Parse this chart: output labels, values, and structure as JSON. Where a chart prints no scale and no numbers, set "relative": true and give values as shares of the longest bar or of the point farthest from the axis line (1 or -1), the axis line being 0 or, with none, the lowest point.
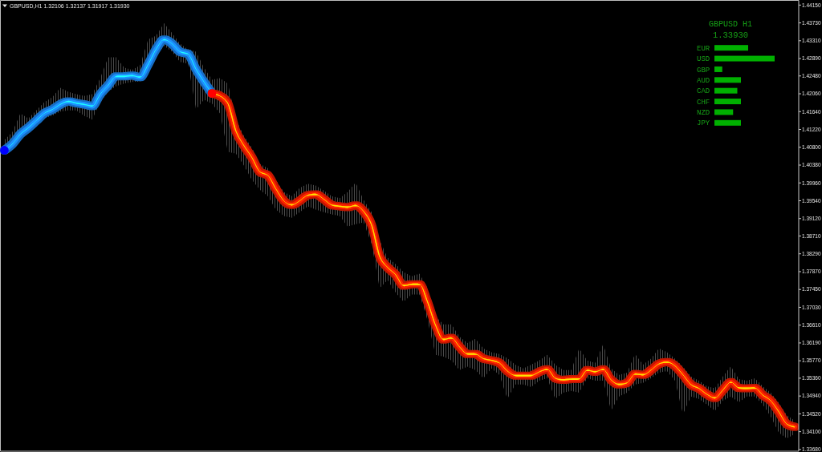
{
  "chart_data": [
    {
      "type": "line",
      "title": "GBPUSD,H1 1.32106 1.32137 1.31917 1.31930",
      "categories": [
        null,
        null,
        null,
        null,
        null,
        null,
        null,
        null,
        null,
        null,
        null,
        null,
        null,
        null,
        null,
        null,
        null,
        null,
        null,
        null,
        null,
        null,
        null,
        null,
        null,
        null,
        null,
        null,
        null,
        null,
        null,
        null,
        null,
        null,
        null,
        null,
        null,
        null,
        null,
        null,
        null,
        null,
        null,
        null,
        null,
        null,
        null,
        null,
        null,
        null,
        null,
        null,
        null,
        null,
        null,
        null,
        null,
        null,
        null,
        null,
        null,
        null,
        null,
        null,
        null,
        null,
        null,
        null,
        null,
        null,
        null,
        null,
        null,
        null,
        null,
        null,
        null,
        null,
        null,
        null,
        null,
        null,
        null,
        null,
        null,
        null,
        null,
        null,
        null,
        null,
        null,
        null,
        null,
        null,
        null,
        null,
        null,
        null,
        null,
        null
      ],
      "series": [
        {
          "color": "#1e90ff",
          "values": [
            1.4073,
            1.4088,
            1.4111,
            1.4126,
            1.4143,
            1.416,
            1.4169,
            1.4181,
            1.4188,
            1.4184,
            1.4181,
            1.4177,
            1.4205,
            1.4226,
            1.4247,
            1.4247,
            1.4249,
            1.4245,
            1.4275,
            1.4311,
            1.4334,
            1.4324,
            1.4305,
            1.43,
            1.4264,
            1.4234,
            1.4207,
            null,
            null,
            null,
            null,
            null,
            null,
            null,
            null,
            null,
            null,
            null,
            null,
            null,
            null,
            null,
            null,
            null,
            null,
            null,
            null,
            null,
            null,
            null,
            null,
            null,
            null,
            null,
            null,
            null,
            null,
            null,
            null,
            null,
            null,
            null,
            null,
            null,
            null,
            null,
            null,
            null,
            null,
            null,
            null,
            null,
            null,
            null,
            null,
            null,
            null,
            null,
            null,
            null,
            null,
            null,
            null,
            null,
            null,
            null,
            null,
            null,
            null,
            null,
            null,
            null,
            null,
            null,
            null,
            null,
            null,
            null,
            null,
            null
          ]
        },
        {
          "color": "#ff2000",
          "values": [
            null,
            null,
            null,
            null,
            null,
            null,
            null,
            null,
            null,
            null,
            null,
            null,
            null,
            null,
            null,
            null,
            null,
            null,
            null,
            null,
            null,
            null,
            null,
            null,
            null,
            null,
            1.4207,
            1.4201,
            1.4183,
            1.4118,
            1.4084,
            1.4056,
            1.4022,
            1.4014,
            1.3982,
            1.3954,
            1.3944,
            1.3954,
            1.3967,
            1.3969,
            1.3958,
            1.3944,
            1.3941,
            1.3939,
            1.3943,
            1.3929,
            1.3897,
            1.3823,
            1.3797,
            1.378,
            1.3754,
            1.3757,
            1.3757,
            1.3716,
            1.3661,
            1.3627,
            1.3631,
            1.361,
            1.3593,
            1.3593,
            1.3582,
            1.3578,
            1.3572,
            1.3553,
            1.3542,
            1.3542,
            1.3542,
            1.3551,
            1.3557,
            1.3536,
            1.3532,
            1.3534,
            1.3534,
            1.3555,
            1.3551,
            1.3557,
            1.3532,
            1.3521,
            1.3525,
            1.3546,
            1.3544,
            1.3555,
            1.357,
            1.3574,
            1.3565,
            1.3544,
            1.3521,
            1.3512,
            1.3498,
            1.3489,
            1.3508,
            1.3527,
            1.3513,
            1.3512,
            1.3513,
            1.3496,
            1.3483,
            1.3457,
            1.3428,
            1.3421
          ],
          "lower": [
            1.4065,
            1.4079,
            1.4097,
            1.4116,
            1.413,
            1.4148,
            1.4154,
            1.4164,
            1.4167,
            1.4167,
            1.4154,
            1.4145,
            1.4186,
            1.4211,
            1.4224,
            1.423,
            1.4234,
            1.4235,
            1.4258,
            1.4296,
            1.4319,
            1.4305,
            1.4281,
            1.4277,
            1.4169,
            1.4192,
            1.4183,
            1.416,
            1.4069,
            1.4065,
            1.4037,
            1.4003,
            1.398,
            1.3965,
            1.3933,
            1.3918,
            1.3914,
            1.3927,
            1.3941,
            1.3933,
            1.3927,
            1.3922,
            1.3918,
            1.3893,
            1.3899,
            1.3903,
            1.3852,
            1.3748,
            1.3767,
            1.3738,
            1.3716,
            1.3733,
            1.3733,
            1.3672,
            1.3591,
            1.3587,
            1.3578,
            1.3555,
            1.3563,
            1.3555,
            1.3536,
            1.3559,
            1.3544,
            1.3487,
            1.3521,
            1.3521,
            1.3515,
            1.353,
            1.3536,
            1.3487,
            1.3502,
            1.3506,
            1.3502,
            1.3536,
            1.353,
            1.353,
            1.346,
            1.3493,
            1.3502,
            1.3521,
            1.3525,
            1.3536,
            1.3549,
            1.3553,
            1.353,
            1.3451,
            1.3493,
            1.3487,
            1.3474,
            1.3459,
            1.3483,
            1.3493,
            1.3479,
            1.3493,
            1.3493,
            1.3474,
            1.3445,
            1.3408,
            1.3394,
            1.3404
          ],
          "upper": [
            1.4097,
            1.4116,
            1.416,
            1.4148,
            1.4167,
            1.4186,
            1.4198,
            1.422,
            1.4211,
            1.4205,
            1.4201,
            1.4205,
            1.4243,
            1.4292,
            1.4292,
            1.4268,
            1.4262,
            1.4273,
            1.4334,
            1.4343,
            1.4372,
            1.4349,
            1.4324,
            1.4311,
            1.4305,
            1.4268,
            1.4239,
            1.4243,
            1.423,
            1.4145,
            1.4107,
            1.4079,
            1.4041,
            1.4031,
            1.4003,
            1.3975,
            1.3965,
            1.3984,
            1.3994,
            1.399,
            1.3978,
            1.3965,
            1.396,
            1.3975,
            1.3997,
            1.3956,
            1.3927,
            1.3861,
            1.382,
            1.3805,
            1.3786,
            1.3776,
            1.3782,
            1.3748,
            1.3682,
            1.3663,
            1.3663,
            1.3634,
            1.3619,
            1.3629,
            1.3606,
            1.3597,
            1.3593,
            1.3583,
            1.3568,
            1.3559,
            1.3568,
            1.3578,
            1.3591,
            1.3568,
            1.3555,
            1.3555,
            1.3606,
            1.3578,
            1.3572,
            1.3616,
            1.3559,
            1.3544,
            1.3549,
            1.3593,
            1.3568,
            1.3582,
            1.3606,
            1.3597,
            1.3582,
            1.3563,
            1.354,
            1.353,
            1.3517,
            1.3512,
            1.354,
            1.3564,
            1.3534,
            1.353,
            1.3536,
            1.3517,
            1.3502,
            1.3478,
            1.3449,
            1.3436
          ]
        },
        {
          "type": "scatter",
          "color": "#0000ff",
          "marker": "circle",
          "values": [
            1.4073,
            null,
            null,
            null,
            null,
            null,
            null,
            null,
            null,
            null,
            null,
            null,
            null,
            null,
            null,
            null,
            null,
            null,
            null,
            null,
            null,
            null,
            null,
            null,
            null,
            null,
            null,
            null,
            null,
            null,
            null,
            null,
            null,
            null,
            null,
            null,
            null,
            null,
            null,
            null,
            null,
            null,
            null,
            null,
            null,
            null,
            null,
            null,
            null,
            null,
            null,
            null,
            null,
            null,
            null,
            null,
            null,
            null,
            null,
            null,
            null,
            null,
            null,
            null,
            null,
            null,
            null,
            null,
            null,
            null,
            null,
            null,
            null,
            null,
            null,
            null,
            null,
            null,
            null,
            null,
            null,
            null,
            null,
            null,
            null,
            null,
            null,
            null,
            null,
            null,
            null,
            null,
            null,
            null,
            null,
            null,
            null,
            null,
            null,
            null
          ]
        },
        {
          "type": "scatter",
          "color": "#ff0000",
          "marker": "circle",
          "values": [
            null,
            null,
            null,
            null,
            null,
            null,
            null,
            null,
            null,
            null,
            null,
            null,
            null,
            null,
            null,
            null,
            null,
            null,
            null,
            null,
            null,
            null,
            null,
            null,
            null,
            null,
            1.4207,
            null,
            null,
            null,
            null,
            null,
            null,
            null,
            null,
            null,
            null,
            null,
            null,
            null,
            null,
            null,
            null,
            null,
            null,
            null,
            null,
            null,
            null,
            null,
            null,
            null,
            null,
            null,
            null,
            null,
            null,
            null,
            null,
            null,
            null,
            null,
            null,
            null,
            null,
            null,
            null,
            null,
            null,
            null,
            null,
            null,
            null,
            null,
            null,
            null,
            null,
            null,
            null,
            null,
            null,
            null,
            null,
            null,
            null,
            null,
            null,
            null,
            null,
            null,
            null,
            null,
            null,
            null,
            null,
            null,
            null,
            null,
            null,
            null
          ]
        }
      ],
      "ylim": [
        1.3364,
        1.4426
      ],
      "yticks": [
        {
          "value": 1.4415,
          "label": "1.44150"
        },
        {
          "value": 1.4373,
          "label": "1.43730"
        },
        {
          "value": 1.4331,
          "label": "1.43310"
        },
        {
          "value": 1.4289,
          "label": "1.42890"
        },
        {
          "value": 1.4248,
          "label": "1.42480"
        },
        {
          "value": 1.4206,
          "label": "1.42060"
        },
        {
          "value": 1.4164,
          "label": "1.41640"
        },
        {
          "value": 1.4122,
          "label": "1.41220"
        },
        {
          "value": 1.408,
          "label": "1.40800"
        },
        {
          "value": 1.4038,
          "label": "1.40380"
        },
        {
          "value": 1.3996,
          "label": "1.39960"
        },
        {
          "value": 1.3954,
          "label": "1.39540"
        },
        {
          "value": 1.3912,
          "label": "1.39120"
        },
        {
          "value": 1.3871,
          "label": "1.38710"
        },
        {
          "value": 1.3829,
          "label": "1.38290"
        },
        {
          "value": 1.3787,
          "label": "1.37870"
        },
        {
          "value": 1.3745,
          "label": "1.37450"
        },
        {
          "value": 1.3703,
          "label": "1.37030"
        },
        {
          "value": 1.3661,
          "label": "1.36610"
        },
        {
          "value": 1.3619,
          "label": "1.36190"
        },
        {
          "value": 1.3577,
          "label": "1.35770"
        },
        {
          "value": 1.3536,
          "label": "1.35360"
        },
        {
          "value": 1.3494,
          "label": "1.34940"
        },
        {
          "value": 1.3452,
          "label": "1.34520"
        },
        {
          "value": 1.341,
          "label": "1.34100"
        },
        {
          "value": 1.3368,
          "label": "1.33680"
        }
      ],
      "tick_labels": "y"
    },
    {
      "type": "bar",
      "orientation": "horizontal",
      "relative": true,
      "title": "GBPUSD H1",
      "subtitle": "1.33930",
      "categories": [
        "EUR",
        "USD",
        "GBP",
        "AUD",
        "CAD",
        "CHF",
        "NZD",
        "JPY"
      ],
      "values": [
        0.56,
        1,
        0.13,
        0.44,
        0.38,
        0.44,
        0.31,
        0.44
      ],
      "color": "#00b000"
    }
  ]
}
